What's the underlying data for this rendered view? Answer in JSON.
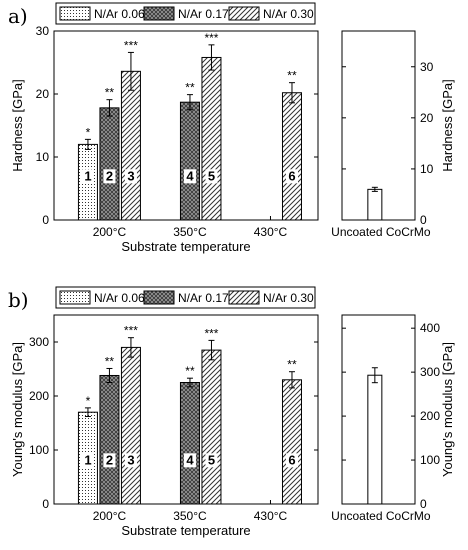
{
  "chart_data": [
    {
      "type": "bar",
      "panel_label": "a)",
      "ylabel": "Hardness [GPa]",
      "xlabel": "Substrate temperature",
      "categories": [
        "200°C",
        "350°C",
        "430°C"
      ],
      "ylim": [
        0,
        30
      ],
      "yticks": [
        "0",
        "10",
        "20",
        "30"
      ],
      "legend_placement": "top",
      "series": [
        {
          "name": "N/Ar 0.06",
          "pattern": "dots",
          "values": [
            12.0,
            null,
            null
          ],
          "errors": [
            0.8,
            null,
            null
          ],
          "significance": [
            "*",
            null,
            null
          ],
          "bar_numbers": [
            "1",
            null,
            null
          ]
        },
        {
          "name": "N/Ar 0.17",
          "pattern": "crosshatch",
          "values": [
            17.8,
            18.7,
            null
          ],
          "errors": [
            1.3,
            1.2,
            null
          ],
          "significance": [
            "**",
            "**",
            null
          ],
          "bar_numbers": [
            "2",
            "4",
            null
          ]
        },
        {
          "name": "N/Ar 0.30",
          "pattern": "diagonal",
          "values": [
            23.6,
            25.8,
            20.2
          ],
          "errors": [
            3.0,
            2.0,
            1.6
          ],
          "significance": [
            "***",
            "***",
            "**"
          ],
          "bar_numbers": [
            "3",
            "5",
            "6"
          ]
        }
      ],
      "reference": {
        "category": "Uncoated CoCrMo",
        "value": 6.0,
        "error": 0.4,
        "ylim": [
          0,
          37
        ],
        "yticks": [
          "0",
          "10",
          "20",
          "30"
        ],
        "ylabel": "Hardness [GPa]"
      }
    },
    {
      "type": "bar",
      "panel_label": "b)",
      "ylabel": "Young's modulus [GPa]",
      "xlabel": "Substrate temperature",
      "categories": [
        "200°C",
        "350°C",
        "430°C"
      ],
      "ylim": [
        0,
        350
      ],
      "yticks": [
        "0",
        "100",
        "200",
        "300"
      ],
      "legend_placement": "top",
      "series": [
        {
          "name": "N/Ar 0.06",
          "pattern": "dots",
          "values": [
            170,
            null,
            null
          ],
          "errors": [
            8,
            null,
            null
          ],
          "significance": [
            "*",
            null,
            null
          ],
          "bar_numbers": [
            "1",
            null,
            null
          ]
        },
        {
          "name": "N/Ar 0.17",
          "pattern": "crosshatch",
          "values": [
            238,
            225,
            null
          ],
          "errors": [
            13,
            8,
            null
          ],
          "significance": [
            "**",
            "**",
            null
          ],
          "bar_numbers": [
            "2",
            "4",
            null
          ]
        },
        {
          "name": "N/Ar 0.30",
          "pattern": "diagonal",
          "values": [
            290,
            285,
            230
          ],
          "errors": [
            18,
            18,
            15
          ],
          "significance": [
            "***",
            "***",
            "**"
          ],
          "bar_numbers": [
            "3",
            "5",
            "6"
          ]
        }
      ],
      "reference": {
        "category": "Uncoated CoCrMo",
        "value": 293,
        "error": 17,
        "ylim": [
          0,
          430
        ],
        "yticks": [
          "0",
          "100",
          "200",
          "300",
          "400"
        ],
        "ylabel": "Young's modulus [GPa]"
      }
    }
  ]
}
